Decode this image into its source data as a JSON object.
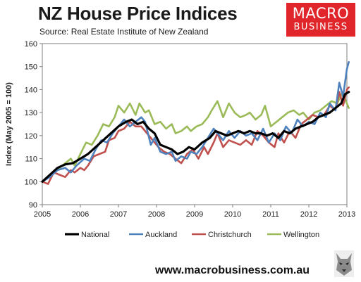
{
  "header": {
    "title": "NZ House Price Indices",
    "source": "Source: Real Estate Institute of New Zealand"
  },
  "logo": {
    "line1": "MACRO",
    "line2": "BUSINESS",
    "icon": "macro-business-logo"
  },
  "footer": {
    "url": "www.macrobusiness.com.au",
    "icon": "wolf-icon"
  },
  "colors": {
    "National": "#000000",
    "Auckland": "#4f81bd",
    "Christchurch": "#c0504d",
    "Wellington": "#9bbb59"
  },
  "chart_data": {
    "type": "line",
    "ylabel": "Index (May 2005 = 100)",
    "xlabel": "",
    "xlim": [
      2005,
      2013
    ],
    "ylim": [
      90,
      160
    ],
    "x_ticks": [
      "2005",
      "2006",
      "2007",
      "2008",
      "2009",
      "2010",
      "2011",
      "2012",
      "2013"
    ],
    "y_ticks": [
      "90",
      "100",
      "110",
      "120",
      "130",
      "140",
      "150",
      "160"
    ],
    "grid": false,
    "legend": "bottom",
    "series": [
      {
        "name": "National",
        "points": [
          [
            2005.0,
            100
          ],
          [
            2005.2,
            103
          ],
          [
            2005.4,
            106
          ],
          [
            2005.6,
            107.5
          ],
          [
            2005.8,
            108
          ],
          [
            2006.0,
            110
          ],
          [
            2006.2,
            112
          ],
          [
            2006.4,
            115
          ],
          [
            2006.6,
            118
          ],
          [
            2006.8,
            121
          ],
          [
            2007.0,
            124
          ],
          [
            2007.2,
            126
          ],
          [
            2007.35,
            127
          ],
          [
            2007.5,
            125
          ],
          [
            2007.65,
            126
          ],
          [
            2007.8,
            123
          ],
          [
            2007.95,
            121
          ],
          [
            2008.1,
            116
          ],
          [
            2008.25,
            115
          ],
          [
            2008.4,
            114
          ],
          [
            2008.55,
            112
          ],
          [
            2008.7,
            113
          ],
          [
            2008.85,
            115
          ],
          [
            2009.0,
            114
          ],
          [
            2009.2,
            117
          ],
          [
            2009.4,
            119
          ],
          [
            2009.55,
            122
          ],
          [
            2009.7,
            121
          ],
          [
            2009.85,
            120
          ],
          [
            2010.0,
            121
          ],
          [
            2010.15,
            122
          ],
          [
            2010.3,
            121
          ],
          [
            2010.45,
            122
          ],
          [
            2010.6,
            121
          ],
          [
            2010.75,
            121
          ],
          [
            2010.9,
            120
          ],
          [
            2011.05,
            121
          ],
          [
            2011.2,
            119
          ],
          [
            2011.35,
            122
          ],
          [
            2011.5,
            121
          ],
          [
            2011.65,
            123
          ],
          [
            2011.8,
            124
          ],
          [
            2011.95,
            125
          ],
          [
            2012.1,
            126
          ],
          [
            2012.25,
            128
          ],
          [
            2012.4,
            129
          ],
          [
            2012.55,
            130
          ],
          [
            2012.7,
            132
          ],
          [
            2012.85,
            134
          ],
          [
            2012.95,
            138
          ],
          [
            2013.05,
            139
          ]
        ]
      },
      {
        "name": "Auckland",
        "points": [
          [
            2005.0,
            100
          ],
          [
            2005.2,
            102
          ],
          [
            2005.4,
            105
          ],
          [
            2005.6,
            106
          ],
          [
            2005.75,
            104
          ],
          [
            2005.9,
            107
          ],
          [
            2006.1,
            110
          ],
          [
            2006.25,
            109
          ],
          [
            2006.4,
            114
          ],
          [
            2006.55,
            118
          ],
          [
            2006.7,
            117
          ],
          [
            2006.85,
            121
          ],
          [
            2007.0,
            124
          ],
          [
            2007.15,
            127
          ],
          [
            2007.3,
            124
          ],
          [
            2007.45,
            126
          ],
          [
            2007.6,
            128
          ],
          [
            2007.7,
            126
          ],
          [
            2007.85,
            116
          ],
          [
            2007.95,
            119
          ],
          [
            2008.1,
            113
          ],
          [
            2008.25,
            112
          ],
          [
            2008.4,
            113
          ],
          [
            2008.5,
            109
          ],
          [
            2008.65,
            111
          ],
          [
            2008.8,
            110
          ],
          [
            2008.9,
            113
          ],
          [
            2009.05,
            112
          ],
          [
            2009.2,
            115
          ],
          [
            2009.35,
            119
          ],
          [
            2009.5,
            123
          ],
          [
            2009.6,
            121
          ],
          [
            2009.75,
            118
          ],
          [
            2009.9,
            122
          ],
          [
            2010.05,
            119
          ],
          [
            2010.2,
            122
          ],
          [
            2010.35,
            120
          ],
          [
            2010.5,
            121
          ],
          [
            2010.65,
            118
          ],
          [
            2010.8,
            123
          ],
          [
            2010.95,
            117
          ],
          [
            2011.1,
            121
          ],
          [
            2011.25,
            118
          ],
          [
            2011.4,
            124
          ],
          [
            2011.55,
            121
          ],
          [
            2011.7,
            127
          ],
          [
            2011.85,
            124
          ],
          [
            2012.0,
            126
          ],
          [
            2012.15,
            125
          ],
          [
            2012.3,
            130
          ],
          [
            2012.45,
            128
          ],
          [
            2012.55,
            134
          ],
          [
            2012.7,
            131
          ],
          [
            2012.8,
            143
          ],
          [
            2012.9,
            137
          ],
          [
            2013.0,
            149
          ],
          [
            2013.05,
            152
          ]
        ]
      },
      {
        "name": "Christchurch",
        "points": [
          [
            2005.0,
            100
          ],
          [
            2005.15,
            99
          ],
          [
            2005.3,
            104
          ],
          [
            2005.45,
            103
          ],
          [
            2005.6,
            102
          ],
          [
            2005.75,
            105
          ],
          [
            2005.85,
            104
          ],
          [
            2006.0,
            106
          ],
          [
            2006.1,
            105
          ],
          [
            2006.2,
            107
          ],
          [
            2006.35,
            111
          ],
          [
            2006.5,
            112
          ],
          [
            2006.65,
            113
          ],
          [
            2006.75,
            118
          ],
          [
            2006.9,
            119
          ],
          [
            2007.0,
            122
          ],
          [
            2007.15,
            123
          ],
          [
            2007.3,
            126
          ],
          [
            2007.45,
            124
          ],
          [
            2007.6,
            124
          ],
          [
            2007.75,
            121
          ],
          [
            2007.9,
            118
          ],
          [
            2008.05,
            115
          ],
          [
            2008.2,
            113
          ],
          [
            2008.35,
            112
          ],
          [
            2008.5,
            110
          ],
          [
            2008.65,
            108
          ],
          [
            2008.8,
            112
          ],
          [
            2008.95,
            114
          ],
          [
            2009.1,
            110
          ],
          [
            2009.25,
            115
          ],
          [
            2009.35,
            112
          ],
          [
            2009.5,
            117
          ],
          [
            2009.6,
            121
          ],
          [
            2009.75,
            115
          ],
          [
            2009.9,
            118
          ],
          [
            2010.05,
            117
          ],
          [
            2010.2,
            116
          ],
          [
            2010.35,
            118
          ],
          [
            2010.5,
            116
          ],
          [
            2010.65,
            122
          ],
          [
            2010.8,
            120
          ],
          [
            2010.95,
            117
          ],
          [
            2011.1,
            115
          ],
          [
            2011.2,
            121
          ],
          [
            2011.35,
            117
          ],
          [
            2011.5,
            122
          ],
          [
            2011.65,
            119
          ],
          [
            2011.8,
            125
          ],
          [
            2011.95,
            127
          ],
          [
            2012.1,
            129
          ],
          [
            2012.25,
            128
          ],
          [
            2012.4,
            129
          ],
          [
            2012.55,
            133
          ],
          [
            2012.7,
            131
          ],
          [
            2012.8,
            139
          ],
          [
            2012.9,
            133
          ],
          [
            2013.0,
            140
          ],
          [
            2013.05,
            141
          ]
        ]
      },
      {
        "name": "Wellington",
        "points": [
          [
            2005.0,
            100
          ],
          [
            2005.15,
            102
          ],
          [
            2005.3,
            104
          ],
          [
            2005.45,
            106
          ],
          [
            2005.6,
            108
          ],
          [
            2005.75,
            110
          ],
          [
            2005.85,
            107
          ],
          [
            2006.0,
            112
          ],
          [
            2006.15,
            117
          ],
          [
            2006.3,
            116
          ],
          [
            2006.45,
            120
          ],
          [
            2006.6,
            125
          ],
          [
            2006.75,
            124
          ],
          [
            2006.9,
            128
          ],
          [
            2007.0,
            133
          ],
          [
            2007.15,
            130
          ],
          [
            2007.3,
            134
          ],
          [
            2007.45,
            129
          ],
          [
            2007.55,
            134
          ],
          [
            2007.7,
            130
          ],
          [
            2007.8,
            131
          ],
          [
            2007.95,
            125
          ],
          [
            2008.1,
            126
          ],
          [
            2008.25,
            123
          ],
          [
            2008.4,
            125
          ],
          [
            2008.5,
            121
          ],
          [
            2008.65,
            122
          ],
          [
            2008.8,
            124
          ],
          [
            2008.9,
            122
          ],
          [
            2009.05,
            124
          ],
          [
            2009.2,
            125
          ],
          [
            2009.35,
            128
          ],
          [
            2009.45,
            131
          ],
          [
            2009.6,
            135
          ],
          [
            2009.75,
            128
          ],
          [
            2009.9,
            134
          ],
          [
            2010.05,
            130
          ],
          [
            2010.2,
            128
          ],
          [
            2010.35,
            129
          ],
          [
            2010.45,
            130
          ],
          [
            2010.6,
            127
          ],
          [
            2010.75,
            129
          ],
          [
            2010.85,
            133
          ],
          [
            2011.0,
            124
          ],
          [
            2011.15,
            126
          ],
          [
            2011.3,
            128
          ],
          [
            2011.45,
            130
          ],
          [
            2011.6,
            131
          ],
          [
            2011.75,
            129
          ],
          [
            2011.85,
            130
          ],
          [
            2012.0,
            127
          ],
          [
            2012.15,
            130
          ],
          [
            2012.3,
            131
          ],
          [
            2012.45,
            133
          ],
          [
            2012.6,
            135
          ],
          [
            2012.75,
            134
          ],
          [
            2012.85,
            138
          ],
          [
            2012.95,
            136
          ],
          [
            2013.05,
            132
          ]
        ]
      }
    ]
  }
}
